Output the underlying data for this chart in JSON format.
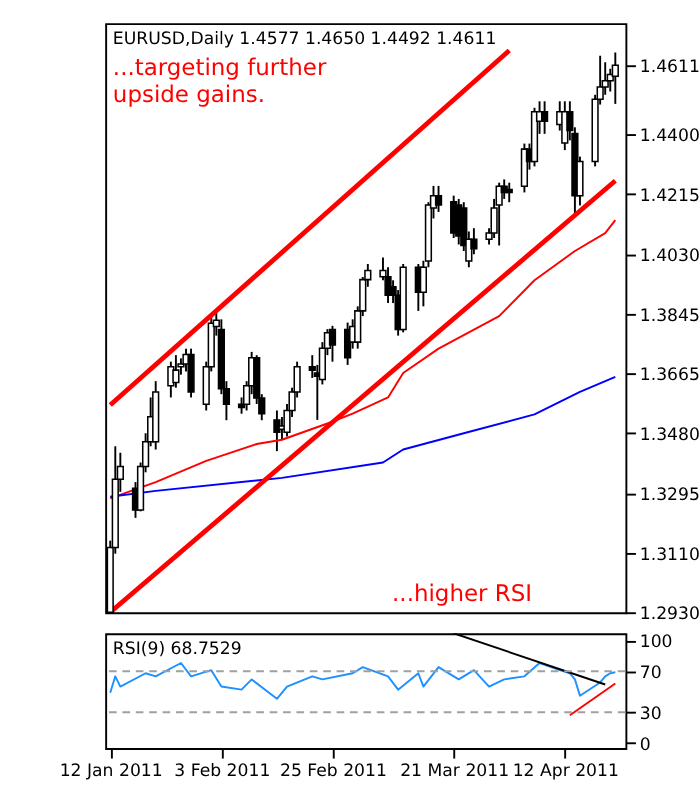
{
  "chart_data": [
    {
      "type": "candlestick",
      "title": "EURUSD,Daily 1.4577 1.4650 1.4492 1.4611",
      "x": [
        "2011-01-12",
        "2011-01-13",
        "2011-01-14",
        "2011-01-17",
        "2011-01-18",
        "2011-01-19",
        "2011-01-20",
        "2011-01-21",
        "2011-01-24",
        "2011-01-25",
        "2011-01-26",
        "2011-01-27",
        "2011-01-28",
        "2011-01-31",
        "2011-02-01",
        "2011-02-02",
        "2011-02-03",
        "2011-02-04",
        "2011-02-07",
        "2011-02-08",
        "2011-02-09",
        "2011-02-10",
        "2011-02-11",
        "2011-02-14",
        "2011-02-15",
        "2011-02-16",
        "2011-02-17",
        "2011-02-18",
        "2011-02-21",
        "2011-02-22",
        "2011-02-23",
        "2011-02-24",
        "2011-02-25",
        "2011-02-28",
        "2011-03-01",
        "2011-03-02",
        "2011-03-03",
        "2011-03-04",
        "2011-03-07",
        "2011-03-08",
        "2011-03-09",
        "2011-03-10",
        "2011-03-11",
        "2011-03-14",
        "2011-03-15",
        "2011-03-16",
        "2011-03-17",
        "2011-03-18",
        "2011-03-21",
        "2011-03-22",
        "2011-03-23",
        "2011-03-24",
        "2011-03-25",
        "2011-03-28",
        "2011-03-29",
        "2011-03-30",
        "2011-03-31",
        "2011-04-01",
        "2011-04-04",
        "2011-04-05",
        "2011-04-06",
        "2011-04-07",
        "2011-04-08",
        "2011-04-11",
        "2011-04-12",
        "2011-04-13",
        "2011-04-14",
        "2011-04-15",
        "2011-04-18",
        "2011-04-19",
        "2011-04-20",
        "2011-04-21",
        "2011-04-22"
      ],
      "ohlc": [
        [
          1.293,
          1.315,
          1.293,
          1.3129
        ],
        [
          1.3129,
          1.344,
          1.311,
          1.3339
        ],
        [
          1.3339,
          1.342,
          1.33,
          1.3378
        ],
        [
          1.3311,
          1.333,
          1.322,
          1.3244
        ],
        [
          1.3244,
          1.339,
          1.324,
          1.3378
        ],
        [
          1.3378,
          1.348,
          1.336,
          1.3454
        ],
        [
          1.3454,
          1.359,
          1.344,
          1.3531
        ],
        [
          1.3454,
          1.364,
          1.343,
          1.3607
        ],
        [
          1.3626,
          1.37,
          1.359,
          1.3684
        ],
        [
          1.3636,
          1.372,
          1.362,
          1.3674
        ],
        [
          1.3684,
          1.371,
          1.366,
          1.3693
        ],
        [
          1.3693,
          1.374,
          1.367,
          1.3722
        ],
        [
          1.3722,
          1.374,
          1.359,
          1.3607
        ],
        [
          1.3569,
          1.37,
          1.355,
          1.3684
        ],
        [
          1.3684,
          1.3846,
          1.367,
          1.3818
        ],
        [
          1.3808,
          1.385,
          1.378,
          1.3827
        ],
        [
          1.3799,
          1.383,
          1.36,
          1.3617
        ],
        [
          1.3617,
          1.364,
          1.352,
          1.3569
        ],
        [
          1.3569,
          1.359,
          1.354,
          1.3559
        ],
        [
          1.3569,
          1.364,
          1.355,
          1.3626
        ],
        [
          1.3626,
          1.373,
          1.36,
          1.3712
        ],
        [
          1.3712,
          1.372,
          1.357,
          1.3588
        ],
        [
          1.3588,
          1.36,
          1.352,
          1.354
        ],
        [
          1.3521,
          1.355,
          1.3425,
          1.3483
        ],
        [
          1.3492,
          1.353,
          1.346,
          1.3502
        ],
        [
          1.3483,
          1.357,
          1.347,
          1.355
        ],
        [
          1.355,
          1.362,
          1.353,
          1.3607
        ],
        [
          1.3607,
          1.37,
          1.359,
          1.3684
        ],
        [
          1.3684,
          1.372,
          1.365,
          1.3674
        ],
        [
          1.3665,
          1.369,
          1.3521,
          1.3655
        ],
        [
          1.3645,
          1.376,
          1.363,
          1.3741
        ],
        [
          1.3741,
          1.38,
          1.372,
          1.3789
        ],
        [
          1.3799,
          1.381,
          1.37,
          1.3751
        ],
        [
          1.3799,
          1.382,
          1.369,
          1.3712
        ],
        [
          1.376,
          1.383,
          1.374,
          1.3808
        ],
        [
          1.376,
          1.387,
          1.374,
          1.3856
        ],
        [
          1.3856,
          1.396,
          1.384,
          1.3952
        ],
        [
          1.3952,
          1.4,
          1.393,
          1.398
        ],
        [
          1.3961,
          1.402,
          1.395,
          1.398
        ],
        [
          1.3961,
          1.399,
          1.388,
          1.3904
        ],
        [
          1.393,
          1.395,
          1.388,
          1.3904
        ],
        [
          1.3904,
          1.392,
          1.378,
          1.3799
        ],
        [
          1.3799,
          1.4,
          1.379,
          1.399
        ],
        [
          1.399,
          1.4,
          1.3856,
          1.3913
        ],
        [
          1.3913,
          1.401,
          1.387,
          1.399
        ],
        [
          1.4009,
          1.419,
          1.399,
          1.4181
        ],
        [
          1.4172,
          1.424,
          1.414,
          1.421
        ],
        [
          1.421,
          1.424,
          1.416,
          1.4181
        ],
        [
          1.4191,
          1.421,
          1.408,
          1.4095
        ],
        [
          1.4181,
          1.42,
          1.406,
          1.4086
        ],
        [
          1.4172,
          1.419,
          1.404,
          1.4057
        ],
        [
          1.4009,
          1.41,
          1.399,
          1.4076
        ],
        [
          1.4076,
          1.411,
          1.403,
          1.4047
        ],
        [
          1.4076,
          1.411,
          1.406,
          1.4095
        ],
        [
          1.4095,
          1.42,
          1.408,
          1.4172
        ],
        [
          1.4181,
          1.425,
          1.4057,
          1.4239
        ],
        [
          1.4239,
          1.426,
          1.42,
          1.422
        ],
        [
          1.4229,
          1.425,
          1.419,
          1.422
        ],
        [
          1.4239,
          1.437,
          1.422,
          1.4353
        ],
        [
          1.4353,
          1.437,
          1.429,
          1.4315
        ],
        [
          1.4315,
          1.448,
          1.43,
          1.4468
        ],
        [
          1.4439,
          1.45,
          1.44,
          1.4468
        ],
        [
          1.4468,
          1.45,
          1.44,
          1.4439
        ],
        [
          1.4429,
          1.45,
          1.441,
          1.4468
        ],
        [
          1.4372,
          1.45,
          1.435,
          1.4468
        ],
        [
          1.4468,
          1.45,
          1.438,
          1.441
        ],
        [
          1.4401,
          1.442,
          1.4152,
          1.421
        ],
        [
          1.421,
          1.433,
          1.418,
          1.4315
        ],
        [
          1.4315,
          1.452,
          1.43,
          1.4506
        ],
        [
          1.4506,
          1.464,
          1.449,
          1.4544
        ],
        [
          1.4544,
          1.462,
          1.452,
          1.4563
        ],
        [
          1.4563,
          1.46,
          1.453,
          1.4582
        ],
        [
          1.4577,
          1.465,
          1.4492,
          1.4611
        ]
      ],
      "series": [
        {
          "type": "line",
          "color": "#ff0000",
          "x": [
            "2011-01-12",
            "2011-01-21",
            "2011-01-31",
            "2011-02-10",
            "2011-02-15",
            "2011-02-24",
            "2011-03-01",
            "2011-03-08",
            "2011-03-11",
            "2011-03-18",
            "2011-03-30",
            "2011-04-06",
            "2011-04-14",
            "2011-04-20",
            "2011-04-22"
          ],
          "values": [
            1.328,
            1.333,
            1.3395,
            1.3447,
            1.346,
            1.351,
            1.354,
            1.359,
            1.3665,
            1.374,
            1.384,
            1.395,
            1.404,
            1.4095,
            1.4135
          ]
        },
        {
          "type": "line",
          "color": "#0000ff",
          "x": [
            "2011-01-12",
            "2011-01-21",
            "2011-02-15",
            "2011-03-07",
            "2011-03-11",
            "2011-03-23",
            "2011-04-06",
            "2011-04-15",
            "2011-04-22"
          ],
          "values": [
            1.3285,
            1.3303,
            1.3343,
            1.339,
            1.343,
            1.348,
            1.3538,
            1.3607,
            1.3653
          ]
        },
        {
          "type": "line",
          "color": "#ff0000",
          "x": [
            "2011-01-12",
            "2011-04-01"
          ],
          "values": [
            1.3567,
            1.4656
          ]
        },
        {
          "type": "line",
          "color": "#ff0000",
          "x": [
            "2011-01-12",
            "2011-04-22"
          ],
          "values": [
            1.293,
            1.4256
          ]
        }
      ],
      "annotations": [
        "...targeting further\nupside gains.",
        "...higher RSI"
      ],
      "xlim": [
        "2011-01-11",
        "2011-04-24"
      ],
      "ylim": [
        1.293,
        1.474
      ],
      "yticks": [
        {
          "value": 1.293,
          "label": "1.2930"
        },
        {
          "value": 1.311,
          "label": "1.3110"
        },
        {
          "value": 1.3295,
          "label": "1.3295"
        },
        {
          "value": 1.348,
          "label": "1.3480"
        },
        {
          "value": 1.3665,
          "label": "1.3665"
        },
        {
          "value": 1.3845,
          "label": "1.3845"
        },
        {
          "value": 1.403,
          "label": "1.4030"
        },
        {
          "value": 1.4215,
          "label": "1.4215"
        },
        {
          "value": 1.44,
          "label": "1.4400"
        },
        {
          "value": 1.4611,
          "label": "1.4611"
        }
      ],
      "tick_labels": "y",
      "grid": false
    },
    {
      "type": "line",
      "title": "RSI(9) 68.7529",
      "series": [
        {
          "color": "#1e90ff",
          "x": [
            "2011-01-12",
            "2011-01-13",
            "2011-01-14",
            "2011-01-19",
            "2011-01-21",
            "2011-01-26",
            "2011-01-28",
            "2011-02-01",
            "2011-02-03",
            "2011-02-07",
            "2011-02-09",
            "2011-02-14",
            "2011-02-16",
            "2011-02-21",
            "2011-02-23",
            "2011-03-01",
            "2011-03-03",
            "2011-03-08",
            "2011-03-10",
            "2011-03-14",
            "2011-03-15",
            "2011-03-18",
            "2011-03-22",
            "2011-03-25",
            "2011-03-28",
            "2011-03-31",
            "2011-04-04",
            "2011-04-07",
            "2011-04-11",
            "2011-04-13",
            "2011-04-14",
            "2011-04-15",
            "2011-04-19",
            "2011-04-20",
            "2011-04-21",
            "2011-04-22"
          ],
          "values": [
            49,
            65,
            55,
            68,
            65,
            78,
            65,
            71,
            55,
            52,
            62,
            43,
            55,
            65,
            62,
            68,
            74,
            65,
            52,
            68,
            55,
            74,
            62,
            71,
            55,
            62,
            65,
            78,
            71,
            68,
            62,
            46,
            59,
            65,
            68,
            69
          ]
        },
        {
          "color": "#000000",
          "x": [
            "2011-03-21",
            "2011-04-20"
          ],
          "values": [
            107,
            57
          ]
        },
        {
          "color": "#ff0000",
          "x": [
            "2011-04-13",
            "2011-04-22"
          ],
          "values": [
            27,
            58
          ]
        }
      ],
      "ref_lines": [
        {
          "axis": "y",
          "value": 30,
          "color": "#a0a0a0",
          "line_style": "dashed"
        },
        {
          "axis": "y",
          "value": 70,
          "color": "#a0a0a0",
          "line_style": "dashed"
        }
      ],
      "xlim": [
        "2011-01-11",
        "2011-04-24"
      ],
      "xticks": [
        {
          "value": "2011-01-12",
          "label": "12 Jan 2011"
        },
        {
          "value": "2011-02-03",
          "label": "3 Feb 2011"
        },
        {
          "value": "2011-02-25",
          "label": "25 Feb 2011"
        },
        {
          "value": "2011-03-21",
          "label": "21 Mar 2011"
        },
        {
          "value": "2011-04-12",
          "label": "12 Apr 2011"
        }
      ],
      "ylim": [
        -5,
        107
      ],
      "yticks": [
        0,
        30,
        70,
        100
      ],
      "grid": false
    }
  ]
}
